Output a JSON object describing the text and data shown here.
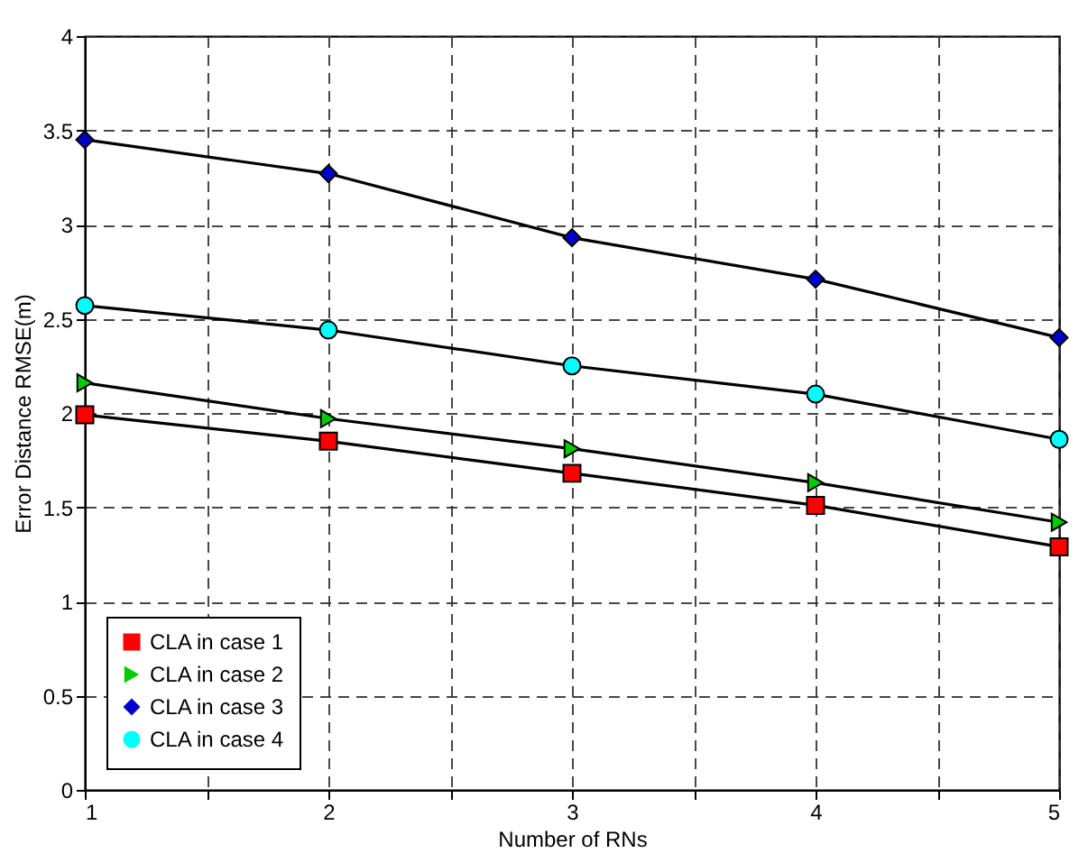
{
  "chart_data": {
    "type": "line",
    "xlabel": "Number of RNs",
    "ylabel": "Error Distance RMSE(m)",
    "x": [
      1,
      2,
      3,
      4,
      5
    ],
    "xlim": [
      1,
      5
    ],
    "xticks": [
      1,
      {
        "value": 1.5,
        "label": null
      },
      2,
      {
        "value": 2.5,
        "label": null
      },
      3,
      {
        "value": 3.5,
        "label": null
      },
      4,
      {
        "value": 4.5,
        "label": null
      },
      5
    ],
    "ylim": [
      0,
      4
    ],
    "yticks": [
      0,
      0.5,
      1,
      1.5,
      2,
      2.5,
      3,
      3.5,
      4
    ],
    "grid": true,
    "legend": "bottom left",
    "line_style": "solid",
    "series": [
      {
        "name": "CLA in case 1",
        "color": "#ff0000",
        "marker": "square",
        "values": [
          1.99,
          1.85,
          1.68,
          1.51,
          1.29
        ]
      },
      {
        "name": "CLA in case 2",
        "color": "#00cc00",
        "marker": "triangle-right",
        "values": [
          2.16,
          1.97,
          1.81,
          1.63,
          1.42
        ]
      },
      {
        "name": "CLA in case 3",
        "color": "#0000cc",
        "marker": "diamond",
        "values": [
          3.45,
          3.27,
          2.93,
          2.71,
          2.4
        ]
      },
      {
        "name": "CLA in case 4",
        "color": "#00ffff",
        "marker": "circle",
        "values": [
          2.57,
          2.44,
          2.25,
          2.1,
          1.86
        ]
      }
    ]
  }
}
